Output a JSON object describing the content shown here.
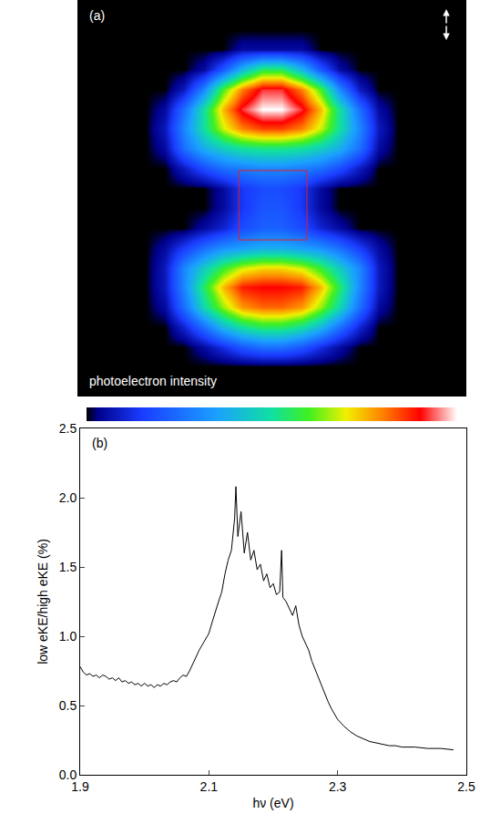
{
  "chart_data": [
    {
      "type": "heatmap",
      "panel": "(a)",
      "colorbar_label": "photoelectron intensity",
      "tick_labels": false,
      "zlim": [
        0,
        100
      ],
      "region": {
        "x": [
          7.8,
          11.3
        ],
        "y": [
          8.1,
          11.6
        ],
        "color": "#e0202a"
      },
      "z": [
        [
          0,
          0,
          0,
          0,
          0,
          0,
          0,
          0,
          0,
          0,
          0,
          0,
          0,
          0,
          0,
          0,
          0,
          0,
          0,
          0
        ],
        [
          0,
          0,
          0,
          0,
          0,
          0,
          0,
          0,
          0,
          0,
          0,
          0,
          0,
          0,
          0,
          0,
          0,
          0,
          0,
          0
        ],
        [
          0,
          0,
          0,
          0,
          0,
          0,
          0,
          0,
          5,
          5,
          5,
          5,
          0,
          0,
          0,
          0,
          0,
          0,
          0,
          0
        ],
        [
          0,
          0,
          0,
          0,
          0,
          0,
          5,
          20,
          40,
          55,
          55,
          40,
          20,
          5,
          0,
          0,
          0,
          0,
          0,
          0
        ],
        [
          0,
          0,
          0,
          0,
          0,
          8,
          30,
          60,
          80,
          92,
          92,
          80,
          60,
          30,
          8,
          0,
          0,
          0,
          0,
          0
        ],
        [
          0,
          0,
          0,
          0,
          5,
          25,
          50,
          75,
          92,
          100,
          100,
          92,
          75,
          50,
          25,
          5,
          0,
          0,
          0,
          0
        ],
        [
          0,
          0,
          0,
          0,
          8,
          30,
          50,
          68,
          80,
          85,
          85,
          80,
          68,
          50,
          30,
          8,
          0,
          0,
          0,
          0
        ],
        [
          0,
          0,
          0,
          0,
          5,
          25,
          38,
          45,
          50,
          52,
          52,
          50,
          45,
          38,
          25,
          5,
          0,
          0,
          0,
          0
        ],
        [
          0,
          0,
          0,
          0,
          0,
          8,
          18,
          25,
          28,
          30,
          30,
          28,
          25,
          18,
          8,
          0,
          0,
          0,
          0,
          0
        ],
        [
          0,
          0,
          0,
          0,
          0,
          0,
          0,
          5,
          14,
          18,
          18,
          14,
          5,
          0,
          0,
          0,
          0,
          0,
          0,
          0
        ],
        [
          0,
          0,
          0,
          0,
          0,
          0,
          0,
          5,
          14,
          20,
          20,
          14,
          5,
          0,
          0,
          0,
          0,
          0,
          0,
          0
        ],
        [
          0,
          0,
          0,
          0,
          0,
          0,
          5,
          10,
          18,
          22,
          22,
          18,
          10,
          5,
          0,
          0,
          0,
          0,
          0,
          0
        ],
        [
          0,
          0,
          0,
          0,
          5,
          15,
          25,
          32,
          35,
          38,
          38,
          35,
          32,
          25,
          15,
          5,
          0,
          0,
          0,
          0
        ],
        [
          0,
          0,
          0,
          0,
          8,
          30,
          45,
          58,
          68,
          72,
          72,
          68,
          58,
          45,
          30,
          8,
          0,
          0,
          0,
          0
        ],
        [
          0,
          0,
          0,
          0,
          8,
          30,
          55,
          75,
          88,
          90,
          90,
          88,
          75,
          55,
          30,
          8,
          0,
          0,
          0,
          0
        ],
        [
          0,
          0,
          0,
          0,
          5,
          25,
          48,
          65,
          78,
          82,
          82,
          78,
          65,
          48,
          25,
          5,
          0,
          0,
          0,
          0
        ],
        [
          0,
          0,
          0,
          0,
          0,
          10,
          25,
          40,
          50,
          55,
          55,
          50,
          40,
          25,
          10,
          0,
          0,
          0,
          0,
          0
        ],
        [
          0,
          0,
          0,
          0,
          0,
          0,
          5,
          12,
          20,
          25,
          25,
          20,
          12,
          5,
          0,
          0,
          0,
          0,
          0,
          0
        ],
        [
          0,
          0,
          0,
          0,
          0,
          0,
          0,
          0,
          0,
          0,
          0,
          0,
          0,
          0,
          0,
          0,
          0,
          0,
          0,
          0
        ],
        [
          0,
          0,
          0,
          0,
          0,
          0,
          0,
          0,
          0,
          0,
          0,
          0,
          0,
          0,
          0,
          0,
          0,
          0,
          0,
          0
        ]
      ]
    },
    {
      "type": "line",
      "panel": "(b)",
      "x_label": "hν (eV)",
      "y_label": "low eKE/high eKE (%)",
      "color": "#000000",
      "grid": false,
      "xlim": [
        1.9,
        2.5
      ],
      "xticks": [
        1.9,
        2.1,
        2.3,
        2.5
      ],
      "ylim": [
        0,
        2.5
      ],
      "yticks": [
        {
          "value": 0,
          "label": "0.0"
        },
        0.5,
        {
          "value": 1,
          "label": "1.0"
        },
        1.5,
        {
          "value": 2,
          "label": "2.0"
        },
        2.5
      ],
      "x": [
        1.9,
        1.905,
        1.91,
        1.915,
        1.92,
        1.925,
        1.93,
        1.935,
        1.94,
        1.945,
        1.95,
        1.955,
        1.96,
        1.965,
        1.97,
        1.975,
        1.98,
        1.985,
        1.99,
        1.995,
        2.0,
        2.005,
        2.01,
        2.015,
        2.02,
        2.025,
        2.03,
        2.035,
        2.04,
        2.045,
        2.05,
        2.055,
        2.06,
        2.065,
        2.07,
        2.075,
        2.08,
        2.085,
        2.09,
        2.095,
        2.1,
        2.105,
        2.11,
        2.115,
        2.12,
        2.125,
        2.13,
        2.135,
        2.14,
        2.142,
        2.145,
        2.15,
        2.155,
        2.16,
        2.165,
        2.17,
        2.175,
        2.18,
        2.185,
        2.19,
        2.195,
        2.2,
        2.205,
        2.21,
        2.213,
        2.215,
        2.22,
        2.225,
        2.23,
        2.235,
        2.24,
        2.245,
        2.25,
        2.255,
        2.26,
        2.265,
        2.27,
        2.275,
        2.28,
        2.285,
        2.29,
        2.295,
        2.3,
        2.31,
        2.32,
        2.33,
        2.34,
        2.35,
        2.36,
        2.37,
        2.38,
        2.39,
        2.4,
        2.42,
        2.44,
        2.46,
        2.48
      ],
      "values": [
        0.78,
        0.74,
        0.72,
        0.73,
        0.71,
        0.72,
        0.7,
        0.72,
        0.71,
        0.69,
        0.7,
        0.68,
        0.7,
        0.67,
        0.68,
        0.66,
        0.67,
        0.65,
        0.66,
        0.64,
        0.66,
        0.64,
        0.65,
        0.63,
        0.65,
        0.64,
        0.66,
        0.65,
        0.67,
        0.68,
        0.67,
        0.7,
        0.72,
        0.71,
        0.75,
        0.8,
        0.86,
        0.9,
        0.94,
        0.98,
        1.02,
        1.1,
        1.18,
        1.25,
        1.32,
        1.45,
        1.55,
        1.62,
        1.85,
        2.08,
        1.72,
        1.9,
        1.6,
        1.75,
        1.55,
        1.62,
        1.48,
        1.52,
        1.4,
        1.45,
        1.35,
        1.38,
        1.3,
        1.32,
        1.62,
        1.28,
        1.25,
        1.2,
        1.15,
        1.22,
        1.08,
        1.0,
        0.95,
        0.9,
        0.82,
        0.76,
        0.7,
        0.64,
        0.58,
        0.53,
        0.48,
        0.44,
        0.4,
        0.35,
        0.31,
        0.28,
        0.26,
        0.24,
        0.23,
        0.22,
        0.21,
        0.21,
        0.2,
        0.2,
        0.19,
        0.19,
        0.18
      ]
    }
  ]
}
